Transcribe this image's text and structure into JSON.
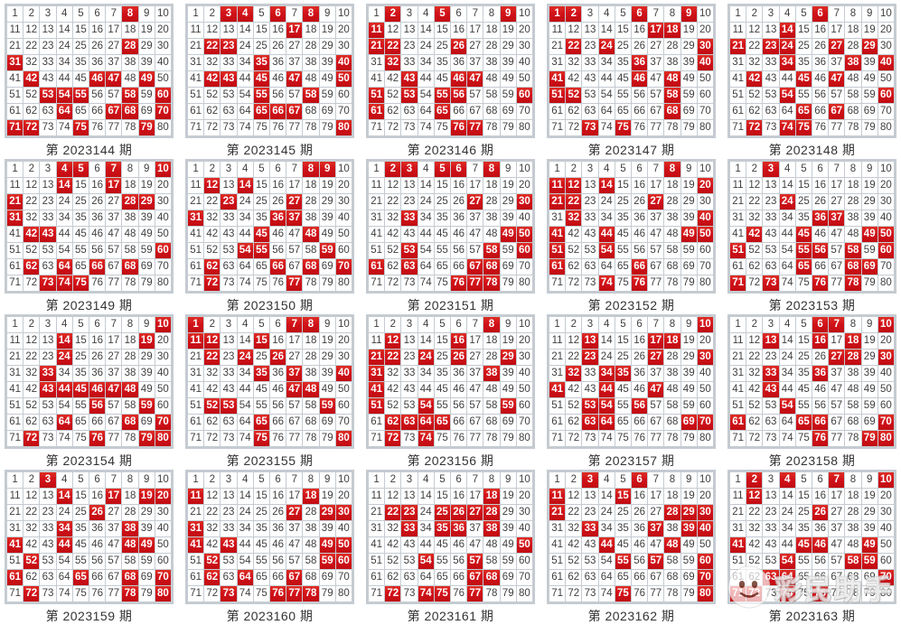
{
  "board": {
    "caption_prefix": "第",
    "caption_suffix": "期",
    "number_min": 1,
    "number_max": 80,
    "columns_per_row": 10,
    "grids": [
      {
        "period": "2023144",
        "hits": [
          8,
          28,
          31,
          42,
          46,
          47,
          49,
          53,
          54,
          55,
          58,
          60,
          64,
          67,
          68,
          70,
          71,
          72,
          75,
          79
        ]
      },
      {
        "period": "2023145",
        "hits": [
          3,
          4,
          6,
          8,
          17,
          22,
          23,
          35,
          40,
          42,
          43,
          45,
          47,
          50,
          55,
          58,
          65,
          66,
          67,
          80
        ]
      },
      {
        "period": "2023146",
        "hits": [
          2,
          5,
          9,
          11,
          21,
          22,
          26,
          32,
          43,
          46,
          47,
          51,
          53,
          55,
          56,
          60,
          61,
          65,
          76,
          77
        ]
      },
      {
        "period": "2023147",
        "hits": [
          1,
          2,
          6,
          9,
          17,
          18,
          22,
          24,
          30,
          36,
          40,
          41,
          46,
          48,
          51,
          52,
          58,
          68,
          73,
          75
        ]
      },
      {
        "period": "2023148",
        "hits": [
          6,
          14,
          21,
          23,
          24,
          27,
          29,
          34,
          38,
          40,
          42,
          45,
          47,
          54,
          60,
          65,
          67,
          72,
          74,
          75
        ]
      },
      {
        "period": "2023149",
        "hits": [
          4,
          5,
          7,
          10,
          14,
          17,
          21,
          28,
          29,
          31,
          42,
          43,
          60,
          62,
          64,
          66,
          68,
          73,
          74,
          75
        ]
      },
      {
        "period": "2023150",
        "hits": [
          8,
          9,
          12,
          14,
          23,
          27,
          31,
          36,
          37,
          45,
          48,
          54,
          55,
          59,
          62,
          66,
          68,
          70,
          72,
          77
        ]
      },
      {
        "period": "2023151",
        "hits": [
          2,
          3,
          5,
          6,
          8,
          27,
          30,
          33,
          49,
          50,
          53,
          58,
          60,
          61,
          63,
          67,
          68,
          76,
          77,
          78
        ]
      },
      {
        "period": "2023152",
        "hits": [
          8,
          11,
          12,
          14,
          20,
          21,
          22,
          27,
          32,
          40,
          41,
          44,
          49,
          50,
          51,
          54,
          61,
          66,
          74,
          76
        ]
      },
      {
        "period": "2023153",
        "hits": [
          3,
          24,
          36,
          37,
          42,
          45,
          49,
          50,
          51,
          55,
          56,
          58,
          60,
          65,
          68,
          69,
          71,
          73,
          76,
          78
        ]
      },
      {
        "period": "2023154",
        "hits": [
          10,
          14,
          19,
          24,
          33,
          43,
          44,
          45,
          46,
          47,
          48,
          56,
          59,
          64,
          68,
          70,
          72,
          76,
          79,
          80
        ]
      },
      {
        "period": "2023155",
        "hits": [
          1,
          7,
          8,
          11,
          12,
          15,
          22,
          24,
          26,
          35,
          37,
          40,
          47,
          48,
          52,
          53,
          59,
          65,
          75,
          80
        ]
      },
      {
        "period": "2023156",
        "hits": [
          8,
          12,
          16,
          21,
          22,
          24,
          26,
          29,
          31,
          38,
          41,
          51,
          54,
          59,
          62,
          63,
          64,
          65,
          72,
          74
        ]
      },
      {
        "period": "2023157",
        "hits": [
          10,
          13,
          17,
          18,
          23,
          27,
          30,
          32,
          34,
          35,
          41,
          44,
          47,
          53,
          54,
          56,
          63,
          64,
          69,
          70
        ]
      },
      {
        "period": "2023158",
        "hits": [
          6,
          7,
          10,
          13,
          16,
          18,
          27,
          28,
          30,
          33,
          36,
          43,
          54,
          61,
          65,
          66,
          70,
          76,
          79,
          80
        ]
      },
      {
        "period": "2023159",
        "hits": [
          3,
          14,
          17,
          19,
          20,
          26,
          34,
          38,
          41,
          44,
          48,
          49,
          52,
          61,
          65,
          68,
          70,
          72,
          78,
          80
        ]
      },
      {
        "period": "2023160",
        "hits": [
          11,
          18,
          27,
          29,
          30,
          31,
          41,
          43,
          49,
          50,
          52,
          59,
          60,
          62,
          64,
          67,
          73,
          76,
          77,
          78
        ]
      },
      {
        "period": "2023161",
        "hits": [
          18,
          22,
          23,
          25,
          26,
          27,
          28,
          33,
          35,
          36,
          38,
          50,
          54,
          57,
          67,
          68,
          72,
          74,
          75,
          77
        ]
      },
      {
        "period": "2023162",
        "hits": [
          3,
          6,
          11,
          15,
          21,
          28,
          29,
          30,
          33,
          37,
          39,
          40,
          44,
          48,
          55,
          57,
          60,
          70,
          75,
          80
        ]
      },
      {
        "period": "2023163",
        "hits": [
          2,
          4,
          7,
          10,
          12,
          26,
          41,
          45,
          46,
          49,
          54,
          58,
          59,
          63,
          64,
          70,
          71,
          72,
          74,
          76
        ]
      }
    ]
  },
  "watermark": {
    "text": "彩民助手",
    "icon": "smiley-face-icon"
  },
  "colors": {
    "hit_red": "#d2121a",
    "hit_red_dark": "#c00d12",
    "hit_red_light": "#de2e24",
    "grid_line": "#c5cbd1",
    "number_text": "#3f3f3f",
    "caption_text": "#333333",
    "cell_bg": "#ffffff",
    "hit_text": "#ffffff"
  }
}
